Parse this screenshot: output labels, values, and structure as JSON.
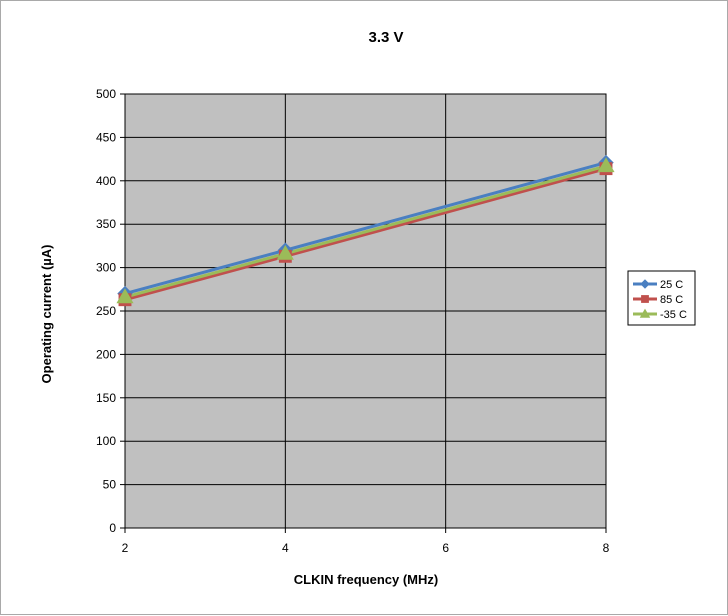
{
  "colors": {
    "plot_bg": "#c0c0c0",
    "grid": "#000000",
    "series": [
      "#4a7fc1",
      "#c0504d",
      "#9bbb59"
    ]
  },
  "chart_data": {
    "type": "line",
    "title": "3.3 V",
    "xlabel": "CLKIN frequency (MHz)",
    "ylabel": "Operating current (µA)",
    "x": [
      2,
      4,
      8
    ],
    "xlim": [
      2,
      8
    ],
    "xticks": [
      "2",
      "4",
      "6",
      "8"
    ],
    "xtick_values": [
      2,
      4,
      6,
      8
    ],
    "ylim": [
      0,
      500
    ],
    "yticks": [
      "0",
      "50",
      "100",
      "150",
      "200",
      "250",
      "300",
      "350",
      "400",
      "450",
      "500"
    ],
    "ytick_values": [
      0,
      50,
      100,
      150,
      200,
      250,
      300,
      350,
      400,
      450,
      500
    ],
    "grid": true,
    "legend_position": "right",
    "series": [
      {
        "name": "25 C",
        "values": [
          270,
          320,
          421
        ],
        "marker": "diamond"
      },
      {
        "name": "85 C",
        "values": [
          263,
          313,
          414
        ],
        "marker": "square"
      },
      {
        "name": "-35 C",
        "values": [
          266,
          316,
          417
        ],
        "marker": "triangle"
      }
    ]
  }
}
